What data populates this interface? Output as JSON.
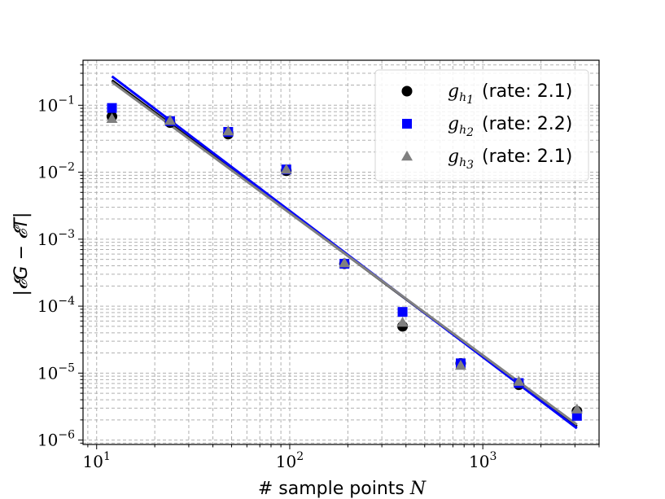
{
  "chart_data": {
    "type": "scatter",
    "xscale": "log",
    "yscale": "log",
    "xlim": [
      8.5,
      4000
    ],
    "ylim": [
      8.6e-07,
      0.47
    ],
    "xlabel": "# sample points",
    "xlabel_math": "N",
    "ylabel": "|𝓔G − 𝓔T|",
    "grid": true,
    "legend_position": "top-right",
    "x_ticks": [
      {
        "value": 10,
        "base": "10",
        "exp": "1"
      },
      {
        "value": 100,
        "base": "10",
        "exp": "2"
      },
      {
        "value": 1000,
        "base": "10",
        "exp": "3"
      }
    ],
    "y_ticks": [
      {
        "value": 1e-06,
        "base": "10",
        "exp": "−6"
      },
      {
        "value": 1e-05,
        "base": "10",
        "exp": "−5"
      },
      {
        "value": 0.0001,
        "base": "10",
        "exp": "−4"
      },
      {
        "value": 0.001,
        "base": "10",
        "exp": "−3"
      },
      {
        "value": 0.01,
        "base": "10",
        "exp": "−2"
      },
      {
        "value": 0.1,
        "base": "10",
        "exp": "−1"
      }
    ],
    "x": [
      12,
      24,
      48,
      96,
      192,
      384,
      768,
      1536,
      3072
    ],
    "series": [
      {
        "name": "g_h1",
        "label_base": "g",
        "label_sub": "h",
        "label_subsub": "1",
        "rate_text": "(rate: 2.1)",
        "marker": "circle",
        "color": "#000000",
        "values": [
          0.068,
          0.055,
          0.037,
          0.0105,
          0.00043,
          5e-05,
          1.4e-05,
          6.7e-06,
          2.7e-06
        ],
        "fit_line": {
          "x": [
            12,
            3072
          ],
          "y": [
            0.235,
            1.6e-06
          ]
        }
      },
      {
        "name": "g_h2",
        "label_base": "g",
        "label_sub": "h",
        "label_subsub": "2",
        "rate_text": "(rate: 2.2)",
        "marker": "square",
        "color": "#0000ff",
        "values": [
          0.091,
          0.058,
          0.04,
          0.011,
          0.00043,
          8.2e-05,
          1.4e-05,
          7.1e-06,
          2.3e-06
        ],
        "fit_line": {
          "x": [
            12,
            3072
          ],
          "y": [
            0.27,
            1.5e-06
          ]
        }
      },
      {
        "name": "g_h3",
        "label_base": "g",
        "label_sub": "h",
        "label_subsub": "3",
        "rate_text": "(rate: 2.1)",
        "marker": "triangle",
        "color": "#808080",
        "values": [
          0.063,
          0.059,
          0.041,
          0.011,
          0.00044,
          5.7e-05,
          1.3e-05,
          7.5e-06,
          2.9e-06
        ],
        "fit_line": {
          "x": [
            12,
            3072
          ],
          "y": [
            0.222,
            1.7e-06
          ]
        }
      }
    ]
  }
}
